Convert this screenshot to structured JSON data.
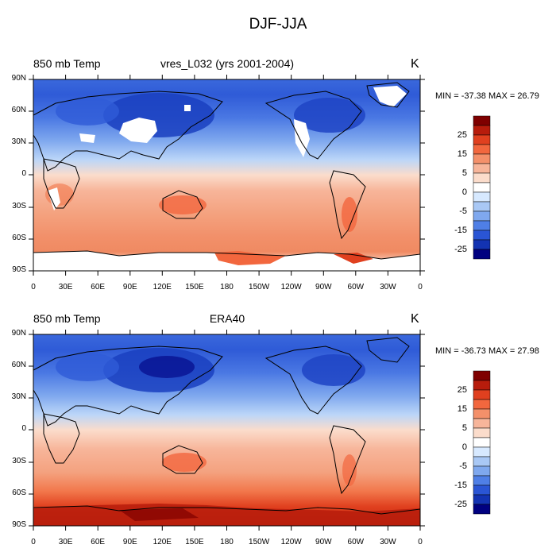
{
  "title": "DJF-JJA",
  "units": "K",
  "panels": [
    {
      "variable_label": "850 mb Temp",
      "center_title": "vres_L032 (yrs 2001-2004)",
      "units": "K",
      "min_max_text": "MIN = -37.38 MAX =  26.79"
    },
    {
      "variable_label": "850 mb Temp",
      "center_title": "ERA40",
      "units": "K",
      "min_max_text": "MIN = -36.73 MAX =  27.98"
    }
  ],
  "axes": {
    "lat_labels": [
      "90N",
      "60N",
      "30N",
      "0",
      "30S",
      "60S",
      "90S"
    ],
    "lon_labels": [
      "0",
      "30E",
      "60E",
      "90E",
      "120E",
      "150E",
      "180",
      "150W",
      "120W",
      "90W",
      "60W",
      "30W",
      "0"
    ]
  },
  "colorbar": {
    "labels": [
      "25",
      "15",
      "5",
      "0",
      "-5",
      "-15",
      "-25"
    ],
    "colors": [
      "#7f0000",
      "#b71c0c",
      "#e0401f",
      "#f2673e",
      "#f4906a",
      "#f7b59a",
      "#fbdccb",
      "#ffffff",
      "#d7e9ff",
      "#a9c8f5",
      "#7fa8ee",
      "#4f7fe6",
      "#2a55d4",
      "#1333b2",
      "#000080"
    ]
  }
}
